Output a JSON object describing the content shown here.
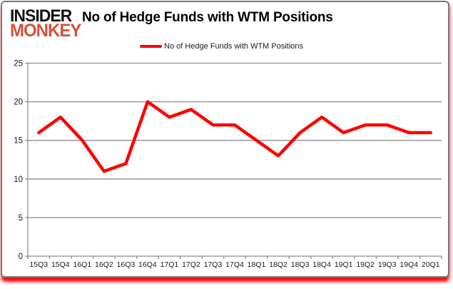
{
  "logo": {
    "line1": "INSIDER",
    "line2": "MONKEY"
  },
  "title": "No of Hedge Funds with WTM Positions",
  "legend": {
    "label": "No of Hedge Funds with WTM Positions",
    "color": "#ff0000"
  },
  "chart_data": {
    "type": "line",
    "title": "No of Hedge Funds with WTM Positions",
    "categories": [
      "15Q3",
      "15Q4",
      "16Q1",
      "16Q2",
      "16Q3",
      "16Q4",
      "17Q1",
      "17Q2",
      "17Q3",
      "17Q4",
      "18Q1",
      "18Q2",
      "18Q3",
      "18Q4",
      "19Q1",
      "19Q2",
      "19Q3",
      "19Q4",
      "20Q1"
    ],
    "series": [
      {
        "name": "No of Hedge Funds with WTM Positions",
        "color": "#ff0000",
        "values": [
          16,
          18,
          15,
          11,
          12,
          20,
          18,
          19,
          17,
          17,
          15,
          13,
          16,
          18,
          16,
          17,
          17,
          16,
          16
        ]
      }
    ],
    "xlabel": "",
    "ylabel": "",
    "ylim": [
      0,
      25
    ],
    "yticks": [
      0,
      5,
      10,
      15,
      20,
      25
    ],
    "grid": true,
    "legend_position": "top-center"
  },
  "colors": {
    "line": "#ff0000",
    "grid": "#8e8e8e",
    "axis": "#8e8e8e",
    "tick_text": "#1a1a1a",
    "title_text": "#000000",
    "logo_black": "#111111",
    "logo_red": "#d8503c",
    "panel_border": "#7a7a7a",
    "bottom_shadow": "#ff0000"
  }
}
